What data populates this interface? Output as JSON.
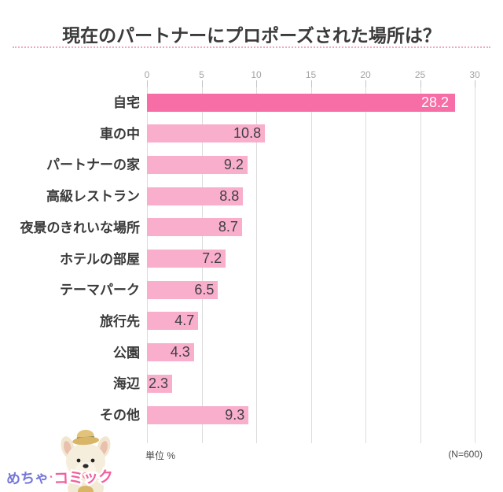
{
  "title": "現在のパートナーにプロポーズされた場所は？",
  "chart_data": {
    "type": "bar",
    "orientation": "horizontal",
    "title": "現在のパートナーにプロポーズされた場所は？",
    "categories": [
      "自宅",
      "車の中",
      "パートナーの家",
      "高級レストラン",
      "夜景のきれいな場所",
      "ホテルの部屋",
      "テーマパーク",
      "旅行先",
      "公園",
      "海辺",
      "その他"
    ],
    "values": [
      28.2,
      10.8,
      9.2,
      8.8,
      8.7,
      7.2,
      6.5,
      4.7,
      4.3,
      2.3,
      9.3
    ],
    "xlim": [
      0,
      30
    ],
    "x_ticks": [
      0,
      5,
      10,
      15,
      20,
      25,
      30
    ],
    "highlight_index": 0,
    "grid": true,
    "legend": false,
    "unit_label": "単位 %",
    "sample_label": "(N=600)",
    "colors": {
      "bar_highlight": "#f76da5",
      "bar": "#f9aecb",
      "value_text": "#3f3f46",
      "value_text_highlight": "#ffffff",
      "grid": "#dcdcdc",
      "axis_text": "#a3a3a3",
      "divider": "#f3a8be",
      "title_text": "#3b3b3b"
    }
  },
  "footer": {
    "unit": "単位 %",
    "n": "(N=600)"
  },
  "logo": {
    "brand_part1": "めちゃ",
    "brand_part2": "コミック",
    "brand_color1": "#7577d8",
    "brand_color2": "#f2609e",
    "mascot": "french-bulldog-with-straw-hat"
  }
}
